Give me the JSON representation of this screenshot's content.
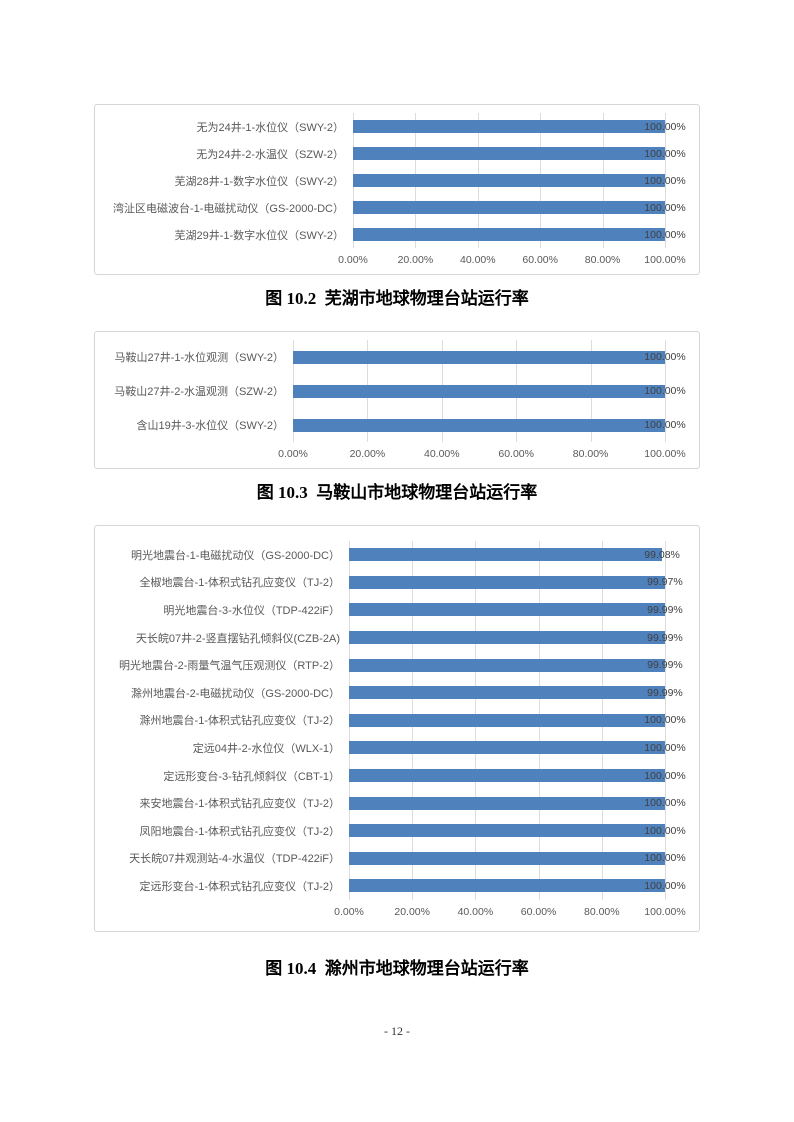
{
  "page": {
    "number": "- 12 -"
  },
  "colors": {
    "bar": "#4F81BD",
    "grid": "#DCDCDC",
    "chart_border": "#D6D6D6",
    "category_label": "#595959",
    "value_label": "#404040",
    "tick_label": "#595959"
  },
  "chart_data": [
    {
      "type": "bar",
      "orientation": "horizontal",
      "caption": "图 10.2  芜湖市地球物理台站运行率",
      "categories": [
        "无为24井-1-水位仪（SWY-2）",
        "无为24井-2-水温仪（SZW-2）",
        "芜湖28井-1-数字水位仪（SWY-2）",
        "湾沚区电磁波台-1-电磁扰动仪（GS-2000-DC）",
        "芜湖29井-1-数字水位仪（SWY-2）"
      ],
      "values": [
        100,
        100,
        100,
        100,
        100
      ],
      "value_labels": [
        "100.00%",
        "100.00%",
        "100.00%",
        "100.00%",
        "100.00%"
      ],
      "x_ticks": [
        "0.00%",
        "20.00%",
        "40.00%",
        "60.00%",
        "80.00%",
        "100.00%"
      ],
      "xlim": [
        0,
        100
      ],
      "grid": true,
      "legend": false
    },
    {
      "type": "bar",
      "orientation": "horizontal",
      "caption": "图 10.3  马鞍山市地球物理台站运行率",
      "categories": [
        "马鞍山27井-1-水位观测（SWY-2）",
        "马鞍山27井-2-水温观测（SZW-2）",
        "含山19井-3-水位仪（SWY-2）"
      ],
      "values": [
        100,
        100,
        100
      ],
      "value_labels": [
        "100.00%",
        "100.00%",
        "100.00%"
      ],
      "x_ticks": [
        "0.00%",
        "20.00%",
        "40.00%",
        "60.00%",
        "80.00%",
        "100.00%"
      ],
      "xlim": [
        0,
        100
      ],
      "grid": true,
      "legend": false
    },
    {
      "type": "bar",
      "orientation": "horizontal",
      "caption": "图 10.4  滁州市地球物理台站运行率",
      "categories": [
        "明光地震台-1-电磁扰动仪（GS-2000-DC）",
        "全椒地震台-1-体积式钻孔应变仪（TJ-2）",
        "明光地震台-3-水位仪（TDP-422iF）",
        "天长皖07井-2-竖直摆钻孔倾斜仪(CZB-2A)",
        "明光地震台-2-雨量气温气压观测仪（RTP-2）",
        "滁州地震台-2-电磁扰动仪（GS-2000-DC）",
        "滁州地震台-1-体积式钻孔应变仪（TJ-2）",
        "定远04井-2-水位仪（WLX-1）",
        "定远形变台-3-钻孔倾斜仪（CBT-1）",
        "来安地震台-1-体积式钻孔应变仪（TJ-2）",
        "凤阳地震台-1-体积式钻孔应变仪（TJ-2）",
        "天长皖07井观测站-4-水温仪（TDP-422iF）",
        "定远形变台-1-体积式钻孔应变仪（TJ-2）"
      ],
      "values": [
        99.08,
        99.97,
        99.99,
        99.99,
        99.99,
        99.99,
        100,
        100,
        100,
        100,
        100,
        100,
        100
      ],
      "value_labels": [
        "99.08%",
        "99.97%",
        "99.99%",
        "99.99%",
        "99.99%",
        "99.99%",
        "100.00%",
        "100.00%",
        "100.00%",
        "100.00%",
        "100.00%",
        "100.00%",
        "100.00%"
      ],
      "x_ticks": [
        "0.00%",
        "20.00%",
        "40.00%",
        "60.00%",
        "80.00%",
        "100.00%"
      ],
      "xlim": [
        0,
        100
      ],
      "grid": true,
      "legend": false
    }
  ]
}
